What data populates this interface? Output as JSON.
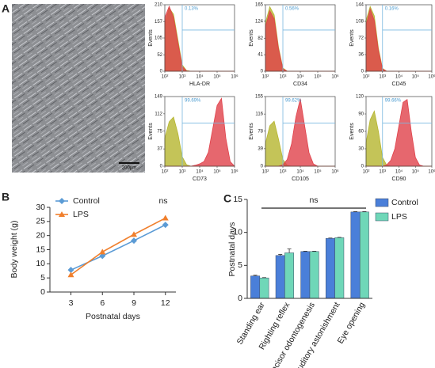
{
  "panels": [
    "A",
    "B",
    "C"
  ],
  "image": {
    "scale_label": "200μm"
  },
  "chart_data": [
    {
      "type": "flow",
      "ylabel": "Events",
      "xlabel": "HLA-DR",
      "annotation": "0.13%",
      "x": [
        2,
        2.25,
        2.5,
        2.75,
        3,
        3.25,
        3.5,
        3.75,
        4,
        4.25,
        4.5,
        4.75,
        5,
        5.25,
        5.5,
        5.75,
        6
      ],
      "xlim": [
        2,
        6
      ],
      "xticks": [
        {
          "value": 2,
          "label": "10²"
        },
        {
          "value": 3,
          "label": "10³"
        },
        {
          "value": 4,
          "label": "10⁴"
        },
        {
          "value": 5,
          "label": "10⁵"
        },
        {
          "value": 6,
          "label": "10⁶"
        }
      ],
      "ylim": [
        0,
        210
      ],
      "yticks": [
        0,
        52,
        105,
        157,
        210
      ],
      "series": [
        {
          "color": "#b5b52e",
          "values": [
            150,
            200,
            180,
            100,
            20,
            2,
            0,
            0,
            0,
            0,
            0,
            0,
            0,
            0,
            0,
            0,
            0
          ]
        },
        {
          "color": "#e0414a",
          "values": [
            170,
            205,
            170,
            90,
            15,
            1,
            0,
            0,
            0,
            0,
            0,
            0,
            0,
            0,
            0,
            0,
            0
          ]
        }
      ]
    },
    {
      "type": "flow",
      "ylabel": "Events",
      "xlabel": "CD34",
      "annotation": "0.56%",
      "x": [
        2,
        2.25,
        2.5,
        2.75,
        3,
        3.25,
        3.5,
        3.75,
        4,
        4.25,
        4.5,
        4.75,
        5,
        5.25,
        5.5,
        5.75,
        6
      ],
      "xlim": [
        2,
        6
      ],
      "xticks": [
        {
          "value": 2,
          "label": "10²"
        },
        {
          "value": 3,
          "label": "10³"
        },
        {
          "value": 4,
          "label": "10⁴"
        },
        {
          "value": 5,
          "label": "10⁵"
        },
        {
          "value": 6,
          "label": "10⁶"
        }
      ],
      "ylim": [
        0,
        165
      ],
      "yticks": [
        0,
        41,
        82,
        124,
        165
      ],
      "series": [
        {
          "color": "#b5b52e",
          "values": [
            120,
            160,
            140,
            60,
            8,
            0,
            0,
            0,
            0,
            0,
            0,
            0,
            0,
            0,
            0,
            0,
            0
          ]
        },
        {
          "color": "#e0414a",
          "values": [
            110,
            150,
            130,
            55,
            6,
            0,
            0,
            0,
            0,
            0,
            0,
            0,
            0,
            0,
            0,
            0,
            0
          ]
        }
      ]
    },
    {
      "type": "flow",
      "ylabel": "Events",
      "xlabel": "CD45",
      "annotation": "0.16%",
      "x": [
        2,
        2.25,
        2.5,
        2.75,
        3,
        3.25,
        3.5,
        3.75,
        4,
        4.25,
        4.5,
        4.75,
        5,
        5.25,
        5.5,
        5.75,
        6
      ],
      "xlim": [
        2,
        6
      ],
      "xticks": [
        {
          "value": 2,
          "label": "10²"
        },
        {
          "value": 3,
          "label": "10³"
        },
        {
          "value": 4,
          "label": "10⁴"
        },
        {
          "value": 5,
          "label": "10⁵"
        },
        {
          "value": 6,
          "label": "10⁶"
        }
      ],
      "ylim": [
        0,
        144
      ],
      "yticks": [
        0,
        36,
        72,
        108,
        144
      ],
      "series": [
        {
          "color": "#b5b52e",
          "values": [
            110,
            140,
            120,
            50,
            6,
            0,
            0,
            0,
            0,
            0,
            0,
            0,
            0,
            0,
            0,
            0,
            0
          ]
        },
        {
          "color": "#e0414a",
          "values": [
            100,
            135,
            110,
            45,
            5,
            0,
            0,
            0,
            0,
            0,
            0,
            0,
            0,
            0,
            0,
            0,
            0
          ]
        }
      ]
    },
    {
      "type": "flow",
      "ylabel": "Events",
      "xlabel": "CD73",
      "annotation": "99.69%",
      "x": [
        2,
        2.25,
        2.5,
        2.75,
        3,
        3.25,
        3.5,
        3.75,
        4,
        4.25,
        4.5,
        4.75,
        5,
        5.25,
        5.5,
        5.75,
        6
      ],
      "xlim": [
        2,
        6
      ],
      "xticks": [
        {
          "value": 2,
          "label": "10²"
        },
        {
          "value": 3,
          "label": "10³"
        },
        {
          "value": 4,
          "label": "10⁴"
        },
        {
          "value": 5,
          "label": "10⁵"
        },
        {
          "value": 6,
          "label": "10⁶"
        }
      ],
      "ylim": [
        0,
        149
      ],
      "yticks": [
        0,
        37,
        75,
        112,
        149
      ],
      "series": [
        {
          "color": "#b5b52e",
          "values": [
            60,
            95,
            105,
            70,
            20,
            3,
            0,
            0,
            0,
            0,
            0,
            0,
            0,
            0,
            0,
            0,
            0
          ]
        },
        {
          "color": "#e0414a",
          "values": [
            0,
            0,
            0,
            0,
            0,
            0,
            0,
            2,
            5,
            10,
            30,
            80,
            130,
            145,
            60,
            10,
            0
          ]
        }
      ]
    },
    {
      "type": "flow",
      "ylabel": "Events",
      "xlabel": "CD105",
      "annotation": "99.62%",
      "x": [
        2,
        2.25,
        2.5,
        2.75,
        3,
        3.25,
        3.5,
        3.75,
        4,
        4.25,
        4.5,
        4.75,
        5,
        5.25,
        5.5,
        5.75,
        6
      ],
      "xlim": [
        2,
        6
      ],
      "xticks": [
        {
          "value": 2,
          "label": "10²"
        },
        {
          "value": 3,
          "label": "10³"
        },
        {
          "value": 4,
          "label": "10⁴"
        },
        {
          "value": 5,
          "label": "10⁵"
        },
        {
          "value": 6,
          "label": "10⁶"
        }
      ],
      "ylim": [
        0,
        155
      ],
      "yticks": [
        0,
        39,
        78,
        116,
        155
      ],
      "series": [
        {
          "color": "#b5b52e",
          "values": [
            50,
            90,
            100,
            60,
            15,
            2,
            0,
            0,
            0,
            0,
            0,
            0,
            0,
            0,
            0,
            0,
            0
          ]
        },
        {
          "color": "#e0414a",
          "values": [
            0,
            0,
            0,
            0,
            3,
            15,
            50,
            110,
            150,
            90,
            30,
            5,
            0,
            0,
            0,
            0,
            0
          ]
        }
      ]
    },
    {
      "type": "flow",
      "ylabel": "Events",
      "xlabel": "CD90",
      "annotation": "99.66%",
      "x": [
        2,
        2.25,
        2.5,
        2.75,
        3,
        3.25,
        3.5,
        3.75,
        4,
        4.25,
        4.5,
        4.75,
        5,
        5.25,
        5.5,
        5.75,
        6
      ],
      "xlim": [
        2,
        6
      ],
      "xticks": [
        {
          "value": 2,
          "label": "10²"
        },
        {
          "value": 3,
          "label": "10³"
        },
        {
          "value": 4,
          "label": "10⁴"
        },
        {
          "value": 5,
          "label": "10⁵"
        },
        {
          "value": 6,
          "label": "10⁶"
        }
      ],
      "ylim": [
        0,
        120
      ],
      "yticks": [
        0,
        30,
        60,
        90,
        120
      ],
      "series": [
        {
          "color": "#b5b52e",
          "values": [
            40,
            80,
            95,
            60,
            15,
            2,
            0,
            0,
            0,
            0,
            0,
            0,
            0,
            0,
            0,
            0,
            0
          ]
        },
        {
          "color": "#e0414a",
          "values": [
            0,
            0,
            0,
            0,
            0,
            2,
            10,
            30,
            70,
            110,
            115,
            60,
            15,
            2,
            0,
            0,
            0
          ]
        }
      ]
    },
    {
      "type": "line",
      "xlabel": "Postnatal days",
      "ylabel": "Body weight (g)",
      "annotation": "ns",
      "x": [
        3,
        6,
        9,
        12
      ],
      "xlim": [
        1,
        13
      ],
      "xticks": [
        3,
        6,
        9,
        12
      ],
      "ylim": [
        0,
        30
      ],
      "yticks": [
        0,
        5,
        10,
        15,
        20,
        25,
        30
      ],
      "series": [
        {
          "name": "Control",
          "color": "#5b9bd5",
          "marker": "diamond",
          "values": [
            7.8,
            12.8,
            18.2,
            23.8
          ]
        },
        {
          "name": "LPS",
          "color": "#f07f2c",
          "marker": "triangle",
          "values": [
            6.1,
            14.2,
            20.4,
            26.2
          ]
        }
      ]
    },
    {
      "type": "bar",
      "ylabel": "Postnatal days",
      "annotation": "ns",
      "categories": [
        "Standing ear",
        "Righting reflex",
        "Incisor odontogenesis",
        "Auditory astonishment",
        "Eye opening"
      ],
      "ylim": [
        0,
        15
      ],
      "yticks": [
        0,
        5,
        10,
        15
      ],
      "series": [
        {
          "name": "Control",
          "color": "#4a7fd9",
          "values": [
            3.4,
            6.5,
            7.1,
            9.1,
            13.1
          ],
          "errors": [
            0.1,
            0.15,
            0.05,
            0.05,
            0.05
          ]
        },
        {
          "name": "LPS",
          "color": "#6fd7b8",
          "values": [
            3.1,
            6.9,
            7.1,
            9.2,
            13.1
          ],
          "errors": [
            0.05,
            0.6,
            0.05,
            0.05,
            0.05
          ]
        }
      ]
    }
  ]
}
